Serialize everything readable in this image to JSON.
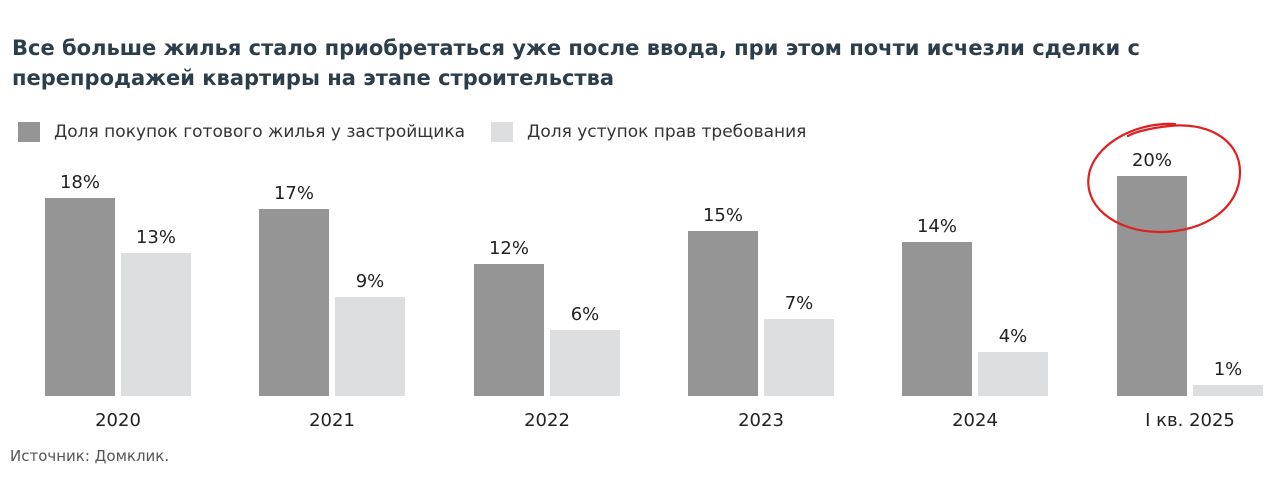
{
  "title": "Все больше жилья стало приобретаться уже после ввода, при этом почти исчезли сделки с перепродажей квартиры на этапе строительства",
  "source": "Источник: Домклик.",
  "colors": {
    "dark_series": "#959595",
    "light_series": "#dcdedf",
    "annotation": "#e02020"
  },
  "chart_data": {
    "type": "bar",
    "categories": [
      "2020",
      "2021",
      "2022",
      "2023",
      "2024",
      "I кв. 2025"
    ],
    "series": [
      {
        "name": "Доля покупок готового жилья у застройщика",
        "values": [
          18,
          17,
          12,
          15,
          14,
          20
        ],
        "labels": [
          "18%",
          "17%",
          "12%",
          "15%",
          "14%",
          "20%"
        ]
      },
      {
        "name": "Доля уступок прав требования",
        "values": [
          13,
          9,
          6,
          7,
          4,
          1
        ],
        "labels": [
          "13%",
          "9%",
          "6%",
          "7%",
          "4%",
          "1%"
        ]
      }
    ],
    "unit": "%",
    "ylim": [
      0,
      20
    ],
    "grid": false,
    "legend_position": "top-left",
    "annotation": "red hand-drawn circle around the I кв. 2025 value 20%"
  }
}
